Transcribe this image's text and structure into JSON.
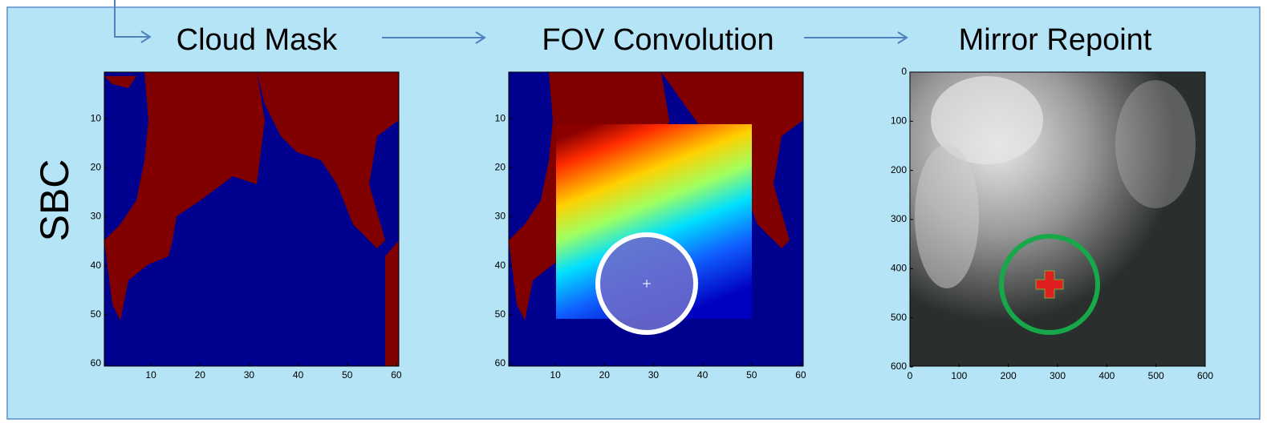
{
  "side_label": "SBC",
  "panels": [
    {
      "title": "Cloud Mask",
      "xticks": [
        "10",
        "20",
        "30",
        "40",
        "50",
        "60"
      ],
      "yticks": [
        "10",
        "20",
        "30",
        "40",
        "50",
        "60"
      ]
    },
    {
      "title": "FOV Convolution",
      "xticks": [
        "10",
        "20",
        "30",
        "40",
        "50",
        "60"
      ],
      "yticks": [
        "10",
        "20",
        "30",
        "40",
        "50",
        "60"
      ]
    },
    {
      "title": "Mirror Repoint",
      "xticks": [
        "0",
        "100",
        "200",
        "300",
        "400",
        "500",
        "600"
      ],
      "yticks": [
        "0",
        "100",
        "200",
        "300",
        "400",
        "500",
        "600"
      ]
    }
  ]
}
